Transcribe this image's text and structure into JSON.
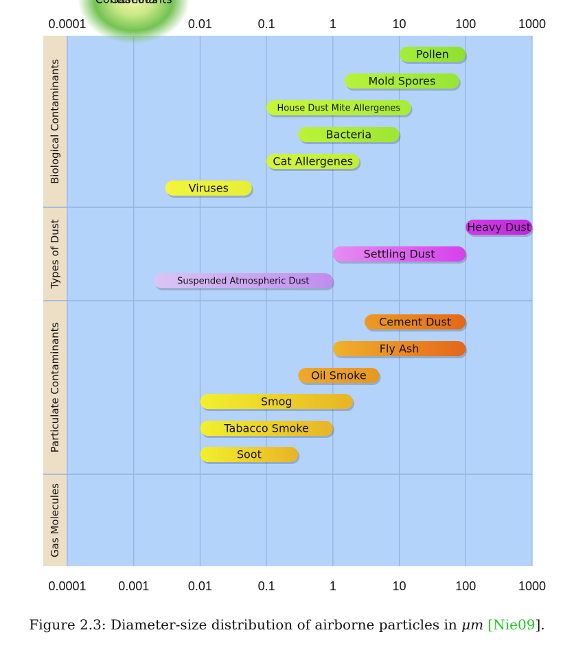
{
  "chart_data": {
    "type": "range-bar",
    "x_scale": "log",
    "x_range": [
      0.0001,
      1000
    ],
    "x_ticks": [
      {
        "value": 0.0001,
        "label": "0.0001"
      },
      {
        "value": 0.001,
        "label": "0.001"
      },
      {
        "value": 0.01,
        "label": "0.01"
      },
      {
        "value": 0.1,
        "label": "0.1"
      },
      {
        "value": 1,
        "label": "1"
      },
      {
        "value": 10,
        "label": "10"
      },
      {
        "value": 100,
        "label": "100"
      },
      {
        "value": 1000,
        "label": "1000"
      }
    ],
    "groups": [
      {
        "name": "Biological Contaminants",
        "rows": 6,
        "items": [
          {
            "label": "Pollen",
            "start": 10,
            "end": 100,
            "colors": [
              "#a4ee3a",
              "#8ee030"
            ],
            "row": 0
          },
          {
            "label": "Mold Spores",
            "start": 1.5,
            "end": 80,
            "colors": [
              "#b8f23a",
              "#96e632"
            ],
            "row": 1
          },
          {
            "label": "House Dust Mite Allergenes",
            "start": 0.1,
            "end": 15,
            "colors": [
              "#c8f53a",
              "#a8ec36"
            ],
            "row": 2
          },
          {
            "label": "Bacteria",
            "start": 0.3,
            "end": 10,
            "colors": [
              "#bcf238",
              "#9ce634"
            ],
            "row": 3
          },
          {
            "label": "Cat Allergenes",
            "start": 0.1,
            "end": 2.5,
            "colors": [
              "#d4f53a",
              "#c0ee36"
            ],
            "row": 4
          },
          {
            "label": "Viruses",
            "start": 0.003,
            "end": 0.06,
            "colors": [
              "#f2f53a",
              "#e6ee36"
            ],
            "row": 5
          }
        ]
      },
      {
        "name": "Types of Dust",
        "rows": 3,
        "items": [
          {
            "label": "Heavy Dust",
            "start": 100,
            "end": 1000,
            "colors": [
              "#d33ae8",
              "#c226dc"
            ],
            "row": 0
          },
          {
            "label": "Settling Dust",
            "start": 1,
            "end": 100,
            "colors": [
              "#e68cf2",
              "#d640ec"
            ],
            "row": 1
          },
          {
            "label": "Suspended Atmospheric Dust",
            "start": 0.002,
            "end": 1,
            "colors": [
              "#d8c6f4",
              "#c08cf0"
            ],
            "row": 2
          }
        ]
      },
      {
        "name": "Particulate Contaminants",
        "rows": 6,
        "items": [
          {
            "label": "Cement Dust",
            "start": 3,
            "end": 100,
            "colors": [
              "#ec9a24",
              "#e46818"
            ],
            "row": 0
          },
          {
            "label": "Fly Ash",
            "start": 1,
            "end": 100,
            "colors": [
              "#f0b22a",
              "#e4661a"
            ],
            "row": 1
          },
          {
            "label": "Oil Smoke",
            "start": 0.3,
            "end": 5,
            "colors": [
              "#eea82a",
              "#e6981e"
            ],
            "row": 2
          },
          {
            "label": "Smog",
            "start": 0.01,
            "end": 2,
            "colors": [
              "#f2f02c",
              "#e8b426"
            ],
            "row": 3
          },
          {
            "label": "Tabacco Smoke",
            "start": 0.01,
            "end": 1,
            "colors": [
              "#f2f02c",
              "#e8b426"
            ],
            "row": 4
          },
          {
            "label": "Soot",
            "start": 0.01,
            "end": 0.3,
            "colors": [
              "#f2f02c",
              "#e8b426"
            ],
            "row": 5
          }
        ]
      },
      {
        "name": "Gas Molecules",
        "rows": 1,
        "items": [
          {
            "label": "Gaseous Contaminants",
            "line1": "Gaseous",
            "line2": "Contaminants",
            "shape": "blob",
            "start": 0.0001,
            "end": 0.01,
            "center": 0.001
          }
        ]
      }
    ]
  },
  "caption": {
    "prefix": "Figure 2.3: Diameter-size distribution of airborne particles in ",
    "unit": "μm",
    "cite_open": "[",
    "cite": "Nie09",
    "cite_close": "]."
  },
  "colors": {
    "plot_bg": "#b4d3fa",
    "band_bg": "#ecdfc5",
    "grid": "#8fb3e3",
    "separator": "#8fb3e3",
    "cite": "#19c81c"
  }
}
